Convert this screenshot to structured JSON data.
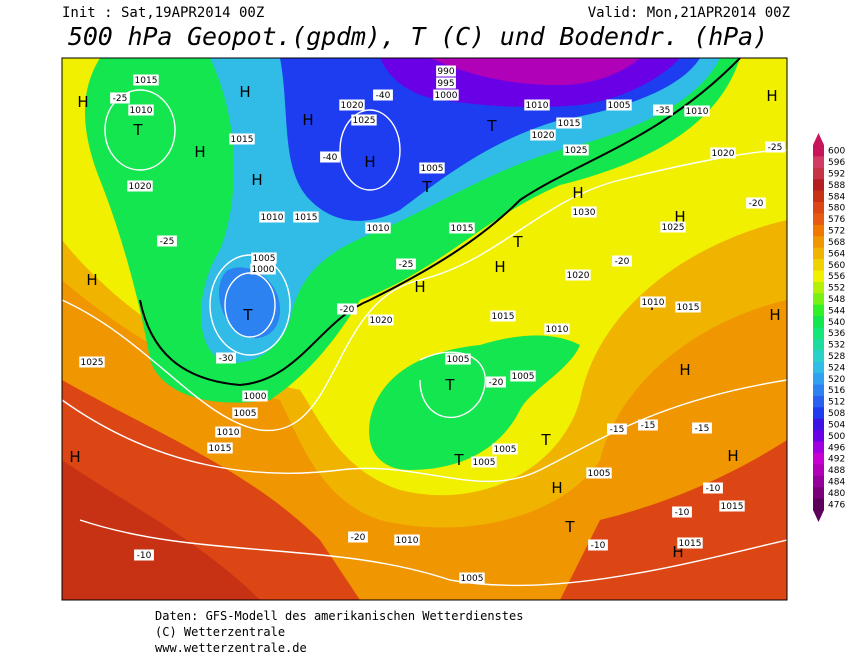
{
  "header": {
    "init": "Init : Sat,19APR2014 00Z",
    "valid": "Valid: Mon,21APR2014 00Z",
    "title": "500 hPa Geopot.(gpdm), T (C) und Bodendr. (hPa)"
  },
  "footer": [
    "Daten: GFS-Modell des amerikanischen Wetterdienstes",
    "(C) Wetterzentrale",
    "www.wetterzentrale.de"
  ],
  "colorbar": {
    "levels": [
      600,
      596,
      592,
      588,
      584,
      580,
      576,
      572,
      568,
      564,
      560,
      556,
      552,
      548,
      544,
      540,
      536,
      532,
      528,
      524,
      520,
      516,
      512,
      508,
      504,
      500,
      496,
      492,
      488,
      484,
      480,
      476
    ],
    "colors": [
      "#c8145a",
      "#d23c64",
      "#c83246",
      "#b41e1e",
      "#c83214",
      "#dc4614",
      "#e65a14",
      "#f07800",
      "#f09600",
      "#f0b400",
      "#f0d200",
      "#f0f000",
      "#b4f00a",
      "#78f014",
      "#32f028",
      "#14e650",
      "#14e678",
      "#1edca0",
      "#28d2c8",
      "#30bce6",
      "#30a0f0",
      "#2c82f0",
      "#2860f0",
      "#1e3cf0",
      "#3c14e6",
      "#6a00e6",
      "#a000e0",
      "#c800d2",
      "#b000b8",
      "#96009a",
      "#7a007a",
      "#5a005a"
    ]
  },
  "map": {
    "highs_lows": [
      "H",
      "H",
      "T",
      "H",
      "H",
      "H",
      "H",
      "T",
      "T",
      "H",
      "H",
      "H",
      "T",
      "H",
      "H",
      "H",
      "T",
      "T",
      "H",
      "T",
      "H",
      "T",
      "H",
      "T",
      "H",
      "H",
      "H",
      "T"
    ],
    "isobars": [
      "1015",
      "1010",
      "1020",
      "1015",
      "1010",
      "1015",
      "1020",
      "1025",
      "1005",
      "1010",
      "1015",
      "1030",
      "1025",
      "1020",
      "1010",
      "1005",
      "1015",
      "1010",
      "1020",
      "1025",
      "1005",
      "1000",
      "1020",
      "1015",
      "1010",
      "1005",
      "1005",
      "1000",
      "1005",
      "1010",
      "1015",
      "1025",
      "1005",
      "1005",
      "1005",
      "1010",
      "1005",
      "1015",
      "1015",
      "1020",
      "1015",
      "1010",
      "990",
      "995",
      "1000"
    ],
    "temperatures": [
      "-25",
      "-40",
      "-40",
      "-30",
      "-25",
      "-20",
      "-25",
      "-20",
      "-20",
      "-20",
      "-25",
      "-15",
      "-15",
      "-15",
      "-10",
      "-10",
      "-10",
      "-20",
      "-10",
      "-35"
    ]
  }
}
